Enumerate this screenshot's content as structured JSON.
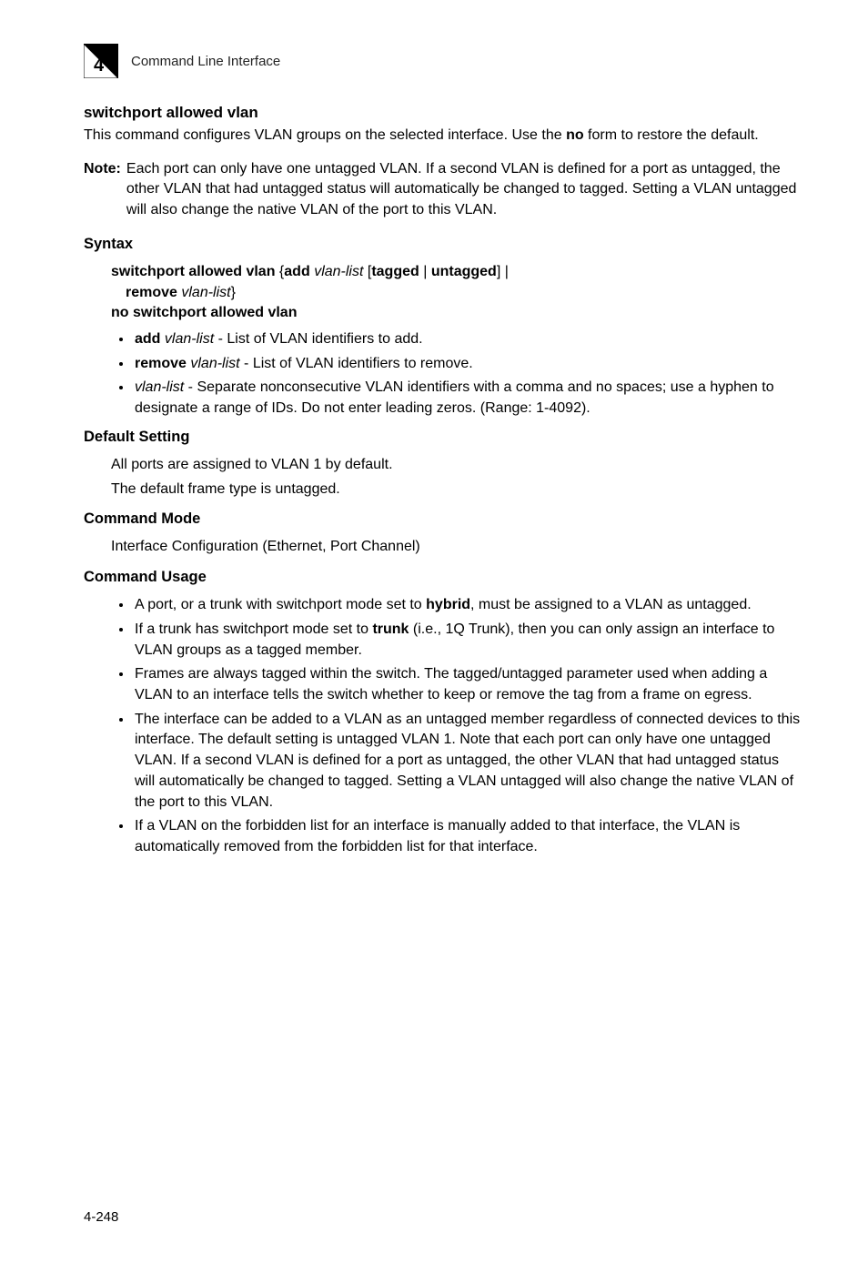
{
  "header": {
    "chapter_number": "4",
    "chapter_label": "Command Line Interface"
  },
  "title": "switchport allowed vlan",
  "intro_html": "This command configures VLAN groups on the selected interface. Use the <b>no</b> form to restore the default.",
  "note": {
    "label": "Note:",
    "text": "Each port can only have one untagged VLAN. If a second VLAN is defined for a port as untagged, the other VLAN that had untagged status will automatically be changed to tagged.  Setting a VLAN untagged will also change the native VLAN of the port to this VLAN."
  },
  "syntax": {
    "heading": "Syntax",
    "line1_html": "<b>switchport allowed vlan</b> {<b>add</b> <i>vlan-list</i> [<b>tagged</b> | <b>untagged</b>] |",
    "line2_html": "<b>remove</b> <i>vlan-list</i>}",
    "line3_html": "<b>no switchport allowed vlan</b>",
    "bullets": [
      "<b>add</b> <i>vlan-list</i> - List of VLAN identifiers to add.",
      "<b>remove</b> <i>vlan-list</i> - List of VLAN identifiers to remove.",
      "<i>vlan-list</i> - Separate nonconsecutive VLAN identifiers with a comma and no spaces; use a hyphen to designate a range of IDs. Do not enter leading zeros. (Range: 1-4092)."
    ]
  },
  "default_setting": {
    "heading": "Default Setting",
    "lines": [
      "All ports are assigned to VLAN 1 by default.",
      "The default frame type is untagged."
    ]
  },
  "command_mode": {
    "heading": "Command Mode",
    "text": "Interface Configuration (Ethernet, Port Channel)"
  },
  "command_usage": {
    "heading": "Command Usage",
    "bullets": [
      "A port, or a trunk with switchport mode set to <b>hybrid</b>, must be assigned to a VLAN as untagged.",
      "If a trunk has switchport mode set to <b>trunk</b> (i.e., 1Q Trunk), then you can only assign an interface to VLAN groups as a tagged member.",
      "Frames are always tagged within the switch. The tagged/untagged parameter used when adding a VLAN to an interface tells the switch whether to keep or remove the tag from a frame on egress.",
      "The interface can be added to a VLAN as an untagged member regardless of connected devices to this interface. The default setting is untagged VLAN 1. Note that each port can only have one untagged VLAN. If a second VLAN is defined for a port as untagged, the other VLAN that had untagged status will automatically be changed to tagged.  Setting a VLAN untagged will also change the native VLAN of the port to this VLAN.",
      "If a VLAN on the forbidden list for an interface is manually added to that interface, the VLAN is automatically removed from the forbidden list for that interface."
    ]
  },
  "page_number": "4-248",
  "colors": {
    "text": "#000000",
    "background": "#ffffff"
  }
}
